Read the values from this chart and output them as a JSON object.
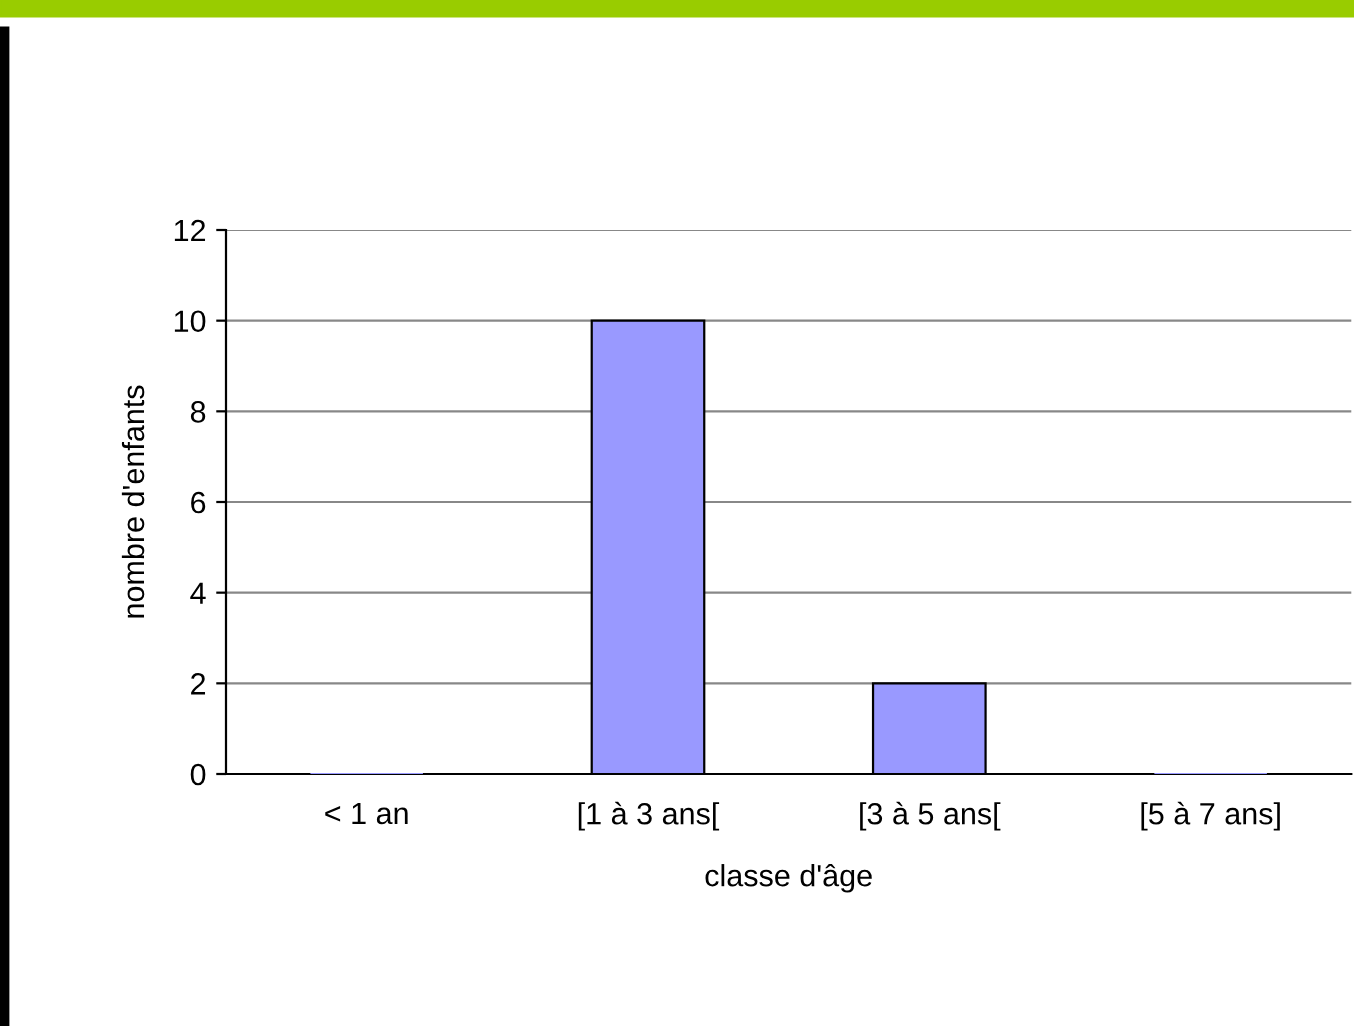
{
  "chart_data": {
    "type": "bar",
    "xlabel": "classe d'âge",
    "ylabel": "nombre d'enfants",
    "categories": [
      "< 1 an",
      "[1 à 3 ans[",
      "[3 à 5 ans[",
      "[5 à 7 ans]"
    ],
    "values": [
      0,
      10,
      2,
      0
    ],
    "color": "#9999ff",
    "ylim": [
      0,
      12
    ],
    "yticks": [
      0,
      2,
      4,
      6,
      8,
      10,
      12
    ],
    "grid": "y"
  }
}
